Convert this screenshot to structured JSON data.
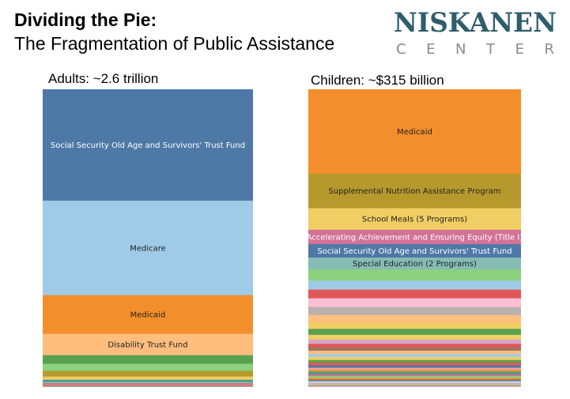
{
  "title": {
    "line1": "Dividing the Pie:",
    "line2": "The Fragmentation of Public Assistance"
  },
  "logo": {
    "word1": "NISKANEN",
    "word2": "CENTER",
    "color": "#2f5d6b"
  },
  "chart_data": [
    {
      "type": "stacked_bar",
      "title": "Adults: ~2.6 trillion",
      "segments": [
        {
          "label": "Social Security Old Age and Survivors' Trust Fund",
          "value": 37.5,
          "color": "#4e79a7",
          "text_color": "#ffffff"
        },
        {
          "label": "Medicare",
          "value": 31.8,
          "color": "#a0cbe8",
          "text_color": "#222222"
        },
        {
          "label": "Medicaid",
          "value": 13.0,
          "color": "#f28e2b",
          "text_color": "#222222"
        },
        {
          "label": "Disability Trust Fund",
          "value": 7.2,
          "color": "#ffbe7d",
          "text_color": "#222222"
        },
        {
          "label": "",
          "value": 2.9,
          "color": "#59a14f"
        },
        {
          "label": "",
          "value": 2.4,
          "color": "#8cd17d"
        },
        {
          "label": "",
          "value": 1.9,
          "color": "#b6992d"
        },
        {
          "label": "",
          "value": 1.1,
          "color": "#f1ce63"
        },
        {
          "label": "",
          "value": 0.7,
          "color": "#499894"
        },
        {
          "label": "",
          "value": 0.5,
          "color": "#86bcb6"
        },
        {
          "label": "",
          "value": 0.4,
          "color": "#e15759"
        },
        {
          "label": "",
          "value": 0.3,
          "color": "#ff9d9a"
        },
        {
          "label": "",
          "value": 0.3,
          "color": "#79706e"
        }
      ]
    },
    {
      "type": "stacked_bar",
      "title": "Children: ~$315 billion",
      "segments": [
        {
          "label": "Medicaid",
          "value": 28.2,
          "color": "#f28e2b",
          "text_color": "#222222"
        },
        {
          "label": "Supplemental Nutrition Assistance Program",
          "value": 11.5,
          "color": "#b6992d",
          "text_color": "#222222"
        },
        {
          "label": "School Meals (5 Programs)",
          "value": 7.2,
          "color": "#f1ce63",
          "text_color": "#222222"
        },
        {
          "label": "Accelerating Achievement and Ensuring Equity (Title I)",
          "value": 4.8,
          "color": "#d37295",
          "text_color": "#ffffff"
        },
        {
          "label": "Social Security Old Age and Survivors' Trust Fund",
          "value": 4.5,
          "color": "#4e79a7",
          "text_color": "#ffffff"
        },
        {
          "label": "Special Education (2 Programs)",
          "value": 4.0,
          "color": "#86bcb6",
          "text_color": "#222222"
        },
        {
          "label": "",
          "value": 3.7,
          "color": "#8cd17d"
        },
        {
          "label": "",
          "value": 3.0,
          "color": "#a0cbe8"
        },
        {
          "label": "",
          "value": 2.9,
          "color": "#e15759"
        },
        {
          "label": "",
          "value": 2.9,
          "color": "#fabfd2"
        },
        {
          "label": "",
          "value": 2.7,
          "color": "#bab0ac"
        },
        {
          "label": "",
          "value": 2.4,
          "color": "#ffbe7d"
        },
        {
          "label": "",
          "value": 2.2,
          "color": "#f1ce63"
        },
        {
          "label": "",
          "value": 2.0,
          "color": "#59a14f"
        },
        {
          "label": "",
          "value": 1.6,
          "color": "#f1ce63"
        },
        {
          "label": "",
          "value": 1.4,
          "color": "#d4a6c8"
        },
        {
          "label": "",
          "value": 1.2,
          "color": "#e15759"
        },
        {
          "label": "",
          "value": 1.1,
          "color": "#9d7660"
        },
        {
          "label": "",
          "value": 1.1,
          "color": "#ffbe7d"
        },
        {
          "label": "",
          "value": 1.0,
          "color": "#a0cbe8"
        },
        {
          "label": "",
          "value": 1.0,
          "color": "#f1ce63"
        },
        {
          "label": "",
          "value": 0.9,
          "color": "#59a14f"
        },
        {
          "label": "",
          "value": 0.9,
          "color": "#e15759"
        },
        {
          "label": "",
          "value": 0.8,
          "color": "#4e79a7"
        },
        {
          "label": "",
          "value": 0.8,
          "color": "#ff9d9a"
        },
        {
          "label": "",
          "value": 0.7,
          "color": "#b6992d"
        },
        {
          "label": "",
          "value": 0.7,
          "color": "#499894"
        },
        {
          "label": "",
          "value": 0.6,
          "color": "#d37295"
        },
        {
          "label": "",
          "value": 0.6,
          "color": "#8cd17d"
        },
        {
          "label": "",
          "value": 0.5,
          "color": "#f28e2b"
        },
        {
          "label": "",
          "value": 0.5,
          "color": "#79706e"
        },
        {
          "label": "",
          "value": 0.4,
          "color": "#a0cbe8"
        },
        {
          "label": "",
          "value": 0.4,
          "color": "#fabfd2"
        },
        {
          "label": "",
          "value": 0.4,
          "color": "#86bcb6"
        },
        {
          "label": "",
          "value": 0.3,
          "color": "#f1ce63"
        },
        {
          "label": "",
          "value": 0.3,
          "color": "#b07aa1"
        }
      ]
    }
  ]
}
